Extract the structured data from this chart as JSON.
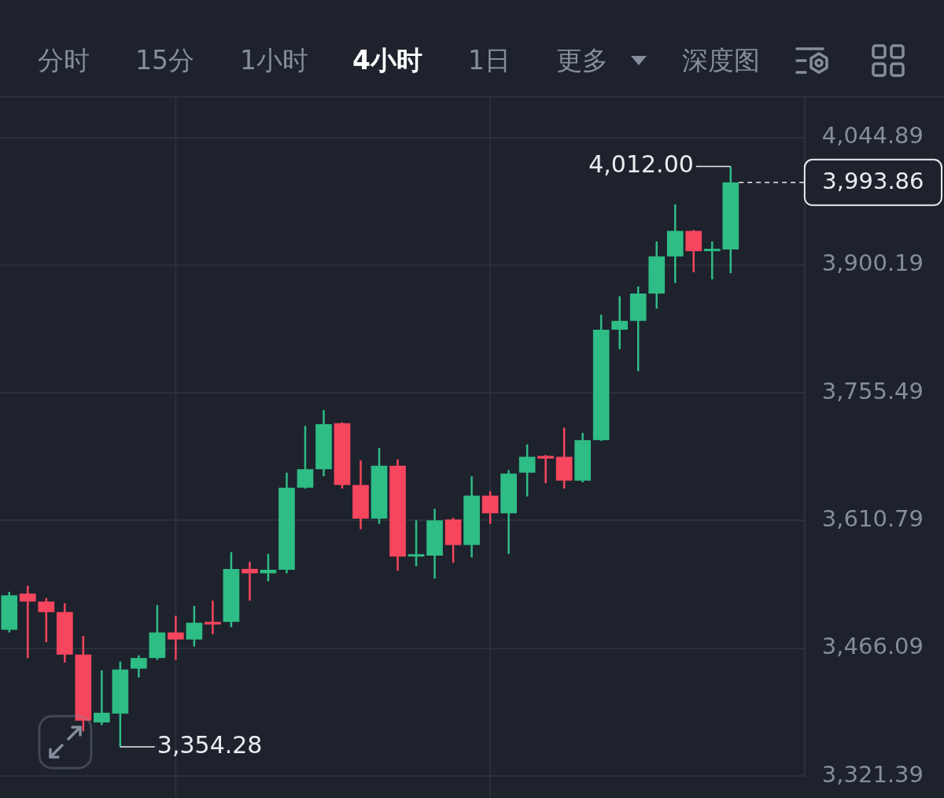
{
  "chart_data": [
    {
      "type": "other",
      "annotations": [
        "分时",
        "15分",
        "1小时",
        "4小时",
        "1日",
        "更多",
        "深度图"
      ]
    },
    {
      "type": "candlestick",
      "categories": [
        null,
        null,
        null,
        null,
        null,
        null,
        null,
        null,
        null,
        null,
        null,
        null,
        null,
        null,
        null,
        null,
        null,
        null,
        null,
        null,
        null,
        null,
        null,
        null,
        null,
        null,
        null,
        null,
        null,
        null,
        null,
        null,
        null,
        null,
        null,
        null,
        null,
        null,
        null,
        null
      ],
      "ohlc": [
        [
          3487,
          3530,
          3484,
          3526
        ],
        [
          3528,
          3537,
          3455,
          3519
        ],
        [
          3519,
          3523,
          3473,
          3507
        ],
        [
          3507,
          3517,
          3450,
          3459
        ],
        [
          3459,
          3480,
          3372,
          3384
        ],
        [
          3382,
          3441,
          3379,
          3393
        ],
        [
          3392,
          3451,
          3354.28,
          3442
        ],
        [
          3443,
          3458,
          3433,
          3455
        ],
        [
          3455,
          3515,
          3453,
          3484
        ],
        [
          3484,
          3503,
          3453,
          3476
        ],
        [
          3476,
          3514,
          3468,
          3495
        ],
        [
          3496,
          3520,
          3482,
          3493
        ],
        [
          3496,
          3575,
          3490,
          3556
        ],
        [
          3556,
          3564,
          3520,
          3551
        ],
        [
          3551,
          3573,
          3542,
          3555
        ],
        [
          3555,
          3665,
          3551,
          3648
        ],
        [
          3648,
          3718,
          3647,
          3669
        ],
        [
          3669,
          3736,
          3661,
          3720
        ],
        [
          3721,
          3722,
          3647,
          3651
        ],
        [
          3651,
          3679,
          3601,
          3613
        ],
        [
          3613,
          3693,
          3607,
          3673
        ],
        [
          3673,
          3680,
          3554,
          3570
        ],
        [
          3570,
          3611,
          3559,
          3572
        ],
        [
          3571,
          3624,
          3545,
          3611
        ],
        [
          3612,
          3614,
          3563,
          3583
        ],
        [
          3583,
          3661,
          3569,
          3639
        ],
        [
          3639,
          3644,
          3607,
          3619
        ],
        [
          3619,
          3668,
          3573,
          3664
        ],
        [
          3665,
          3697,
          3638,
          3683
        ],
        [
          3684,
          3685,
          3653,
          3681
        ],
        [
          3683,
          3716,
          3647,
          3656
        ],
        [
          3656,
          3710,
          3654,
          3702
        ],
        [
          3702,
          3844,
          3701,
          3827
        ],
        [
          3827,
          3865,
          3805,
          3837
        ],
        [
          3837,
          3876,
          3780,
          3868
        ],
        [
          3868,
          3927,
          3851,
          3910
        ],
        [
          3910,
          3969,
          3880,
          3939
        ],
        [
          3939,
          3940,
          3892,
          3916
        ],
        [
          3916,
          3927,
          3884,
          3918
        ],
        [
          3918,
          4012.0,
          3891,
          3993.86
        ]
      ],
      "colors": [
        "#2ebd85",
        "#f6465d",
        "#f6465d",
        "#f6465d",
        "#f6465d",
        "#2ebd85",
        "#2ebd85",
        "#2ebd85",
        "#2ebd85",
        "#f6465d",
        "#2ebd85",
        "#f6465d",
        "#2ebd85",
        "#f6465d",
        "#2ebd85",
        "#2ebd85",
        "#2ebd85",
        "#2ebd85",
        "#f6465d",
        "#f6465d",
        "#2ebd85",
        "#f6465d",
        "#2ebd85",
        "#2ebd85",
        "#f6465d",
        "#2ebd85",
        "#f6465d",
        "#2ebd85",
        "#2ebd85",
        "#f6465d",
        "#f6465d",
        "#2ebd85",
        "#2ebd85",
        "#2ebd85",
        "#2ebd85",
        "#2ebd85",
        "#2ebd85",
        "#f6465d",
        "#2ebd85",
        "#2ebd85"
      ],
      "ylim": [
        3321.39,
        4090
      ],
      "yticks": [
        {
          "value": 3321.39,
          "label": "3,321.39"
        },
        {
          "value": 3466.09,
          "label": "3,466.09"
        },
        {
          "value": 3610.79,
          "label": "3,610.79"
        },
        {
          "value": 3755.49,
          "label": "3,755.49"
        },
        {
          "value": 3900.19,
          "label": "3,900.19"
        },
        {
          "value": 4044.89,
          "label": "4,044.89"
        }
      ],
      "grid": "y",
      "tick_labels": "y",
      "ref_lines": [
        {
          "axis": "y",
          "value": 3993.86,
          "label": "3,993.86",
          "color": "#eaecef",
          "line_style": "dashed"
        }
      ],
      "annotations": [
        "4,012.00",
        "3,354.28"
      ]
    }
  ]
}
